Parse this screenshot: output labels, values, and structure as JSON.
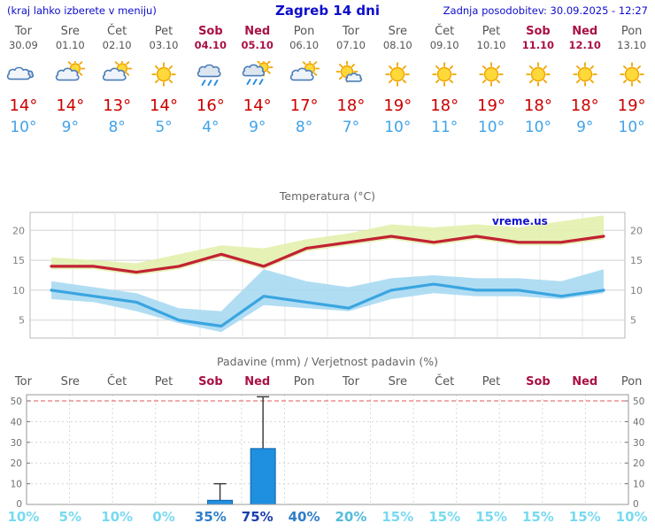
{
  "header": {
    "left_note": "(kraj lahko izberete v meniju)",
    "title": "Zagreb 14 dni",
    "updated": "Zadnja posodobitev: 30.09.2025 - 12:27"
  },
  "colors": {
    "header_blue": "#0d0dcc",
    "high_red": "#cc0000",
    "low_blue": "#3fa3e8",
    "weekday_gray": "#555555",
    "weekend_red": "#aa1144",
    "bar_blue": "#1f8fe0",
    "bar_border": "#0f62a8",
    "max_line": "#c22233",
    "min_line": "#3aa5e0",
    "max_band": "#e3efad",
    "min_band": "#a8d9f2",
    "prob_high": "#1b3fae",
    "prob_mid": "#2f7ec9",
    "prob_low2": "#54bcdc",
    "prob_low": "#78daf0"
  },
  "days": [
    {
      "name": "Tor",
      "date": "30.09",
      "weekend": false,
      "icon": "cloudy",
      "high": "14°",
      "low": "10°"
    },
    {
      "name": "Sre",
      "date": "01.10",
      "weekend": false,
      "icon": "partly-cloudy",
      "high": "14°",
      "low": "9°"
    },
    {
      "name": "Čet",
      "date": "02.10",
      "weekend": false,
      "icon": "partly-cloudy",
      "high": "13°",
      "low": "8°"
    },
    {
      "name": "Pet",
      "date": "03.10",
      "weekend": false,
      "icon": "sunny",
      "high": "14°",
      "low": "5°"
    },
    {
      "name": "Sob",
      "date": "04.10",
      "weekend": true,
      "icon": "rain",
      "high": "16°",
      "low": "4°"
    },
    {
      "name": "Ned",
      "date": "05.10",
      "weekend": true,
      "icon": "rain-sun",
      "high": "14°",
      "low": "9°"
    },
    {
      "name": "Pon",
      "date": "06.10",
      "weekend": false,
      "icon": "partly-cloudy",
      "high": "17°",
      "low": "8°"
    },
    {
      "name": "Tor",
      "date": "07.10",
      "weekend": false,
      "icon": "mostly-sunny",
      "high": "18°",
      "low": "7°"
    },
    {
      "name": "Sre",
      "date": "08.10",
      "weekend": false,
      "icon": "sunny",
      "high": "19°",
      "low": "10°"
    },
    {
      "name": "Čet",
      "date": "09.10",
      "weekend": false,
      "icon": "sunny",
      "high": "18°",
      "low": "11°"
    },
    {
      "name": "Pet",
      "date": "10.10",
      "weekend": false,
      "icon": "sunny",
      "high": "19°",
      "low": "10°"
    },
    {
      "name": "Sob",
      "date": "11.10",
      "weekend": true,
      "icon": "sunny",
      "high": "18°",
      "low": "10°"
    },
    {
      "name": "Ned",
      "date": "12.10",
      "weekend": true,
      "icon": "sunny",
      "high": "18°",
      "low": "9°"
    },
    {
      "name": "Pon",
      "date": "13.10",
      "weekend": false,
      "icon": "sunny",
      "high": "19°",
      "low": "10°"
    }
  ],
  "chart_data": [
    {
      "type": "line",
      "title": "Temperatura (°C)",
      "watermark": "vreme.us",
      "x": [
        "Tor",
        "Sre",
        "Čet",
        "Pet",
        "Sob",
        "Ned",
        "Pon",
        "Tor",
        "Sre",
        "Čet",
        "Pet",
        "Sob",
        "Ned",
        "Pon"
      ],
      "yticks": [
        5,
        10,
        15,
        20
      ],
      "yrange": [
        2,
        23
      ],
      "grid": true,
      "series": [
        {
          "name": "max-temp",
          "color": "#c22233",
          "values": [
            14,
            14,
            13,
            14,
            16,
            14,
            17,
            18,
            19,
            18,
            19,
            18,
            18,
            19
          ]
        },
        {
          "name": "min-temp",
          "color": "#3aa5e0",
          "values": [
            10,
            9,
            8,
            5,
            4,
            9,
            8,
            7,
            10,
            11,
            10,
            10,
            9,
            10
          ]
        }
      ],
      "bands": [
        {
          "name": "max-range",
          "color": "#e3efad",
          "upper": [
            15.5,
            15,
            14.5,
            16,
            17.5,
            17,
            18.5,
            19.5,
            21,
            20.5,
            21,
            20.5,
            21.5,
            22.5
          ],
          "lower": [
            13.5,
            13.5,
            12.5,
            13.5,
            15.5,
            13.5,
            16.5,
            17.5,
            18.5,
            17.5,
            18.5,
            17.5,
            17.5,
            18.5
          ]
        },
        {
          "name": "min-range",
          "color": "#a8d9f2",
          "upper": [
            11.5,
            10.5,
            9.5,
            7,
            6.5,
            13.5,
            11.5,
            10.5,
            12,
            12.5,
            12,
            12,
            11.5,
            13.5
          ],
          "lower": [
            8.5,
            8,
            6.5,
            4.5,
            3,
            7.5,
            7,
            6.5,
            8.5,
            9.5,
            9,
            9,
            8.5,
            9.5
          ]
        }
      ]
    },
    {
      "type": "bar",
      "title": "Padavine (mm) / Verjetnost padavin (%)",
      "x": [
        "Tor",
        "Sre",
        "Čet",
        "Pet",
        "Sob",
        "Ned",
        "Pon",
        "Tor",
        "Sre",
        "Čet",
        "Pet",
        "Sob",
        "Ned",
        "Pon"
      ],
      "yticks": [
        0,
        10,
        20,
        30,
        40,
        50
      ],
      "yrange": [
        0,
        53
      ],
      "values": [
        0,
        0,
        0,
        0,
        2,
        27,
        0,
        0,
        0,
        0,
        0,
        0,
        0,
        0
      ],
      "whiskers": [
        0,
        0,
        0,
        0,
        10,
        52,
        0,
        0,
        0,
        0,
        0,
        0,
        0,
        0
      ],
      "probabilities": [
        "10%",
        "5%",
        "10%",
        "0%",
        "35%",
        "75%",
        "40%",
        "20%",
        "15%",
        "15%",
        "15%",
        "15%",
        "15%",
        "10%"
      ]
    }
  ]
}
